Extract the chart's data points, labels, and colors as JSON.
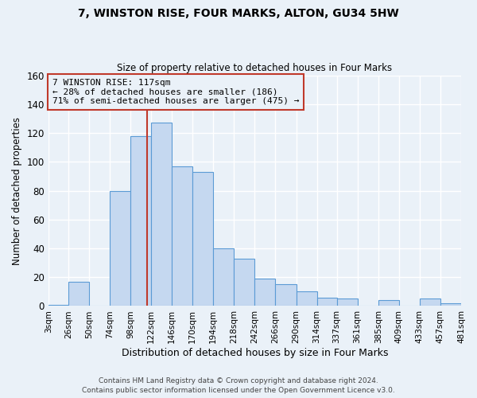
{
  "title": "7, WINSTON RISE, FOUR MARKS, ALTON, GU34 5HW",
  "subtitle": "Size of property relative to detached houses in Four Marks",
  "xlabel": "Distribution of detached houses by size in Four Marks",
  "ylabel": "Number of detached properties",
  "bin_edges": [
    3,
    26,
    50,
    74,
    98,
    122,
    146,
    170,
    194,
    218,
    242,
    266,
    290,
    314,
    337,
    361,
    385,
    409,
    433,
    457,
    481
  ],
  "bar_heights": [
    1,
    17,
    0,
    80,
    118,
    127,
    97,
    93,
    40,
    33,
    19,
    15,
    10,
    6,
    5,
    0,
    4,
    0,
    5,
    2
  ],
  "bar_color": "#c5d8f0",
  "bar_edge_color": "#5b9bd5",
  "property_size": 117,
  "vline_color": "#c0392b",
  "annotation_line1": "7 WINSTON RISE: 117sqm",
  "annotation_line2": "← 28% of detached houses are smaller (186)",
  "annotation_line3": "71% of semi-detached houses are larger (475) →",
  "annotation_box_color": "#c0392b",
  "ylim": [
    0,
    160
  ],
  "yticks": [
    0,
    20,
    40,
    60,
    80,
    100,
    120,
    140,
    160
  ],
  "tick_labels": [
    "3sqm",
    "26sqm",
    "50sqm",
    "74sqm",
    "98sqm",
    "122sqm",
    "146sqm",
    "170sqm",
    "194sqm",
    "218sqm",
    "242sqm",
    "266sqm",
    "290sqm",
    "314sqm",
    "337sqm",
    "361sqm",
    "385sqm",
    "409sqm",
    "433sqm",
    "457sqm",
    "481sqm"
  ],
  "bg_color": "#eaf1f8",
  "grid_color": "#ffffff",
  "footer_line1": "Contains HM Land Registry data © Crown copyright and database right 2024.",
  "footer_line2": "Contains public sector information licensed under the Open Government Licence v3.0."
}
